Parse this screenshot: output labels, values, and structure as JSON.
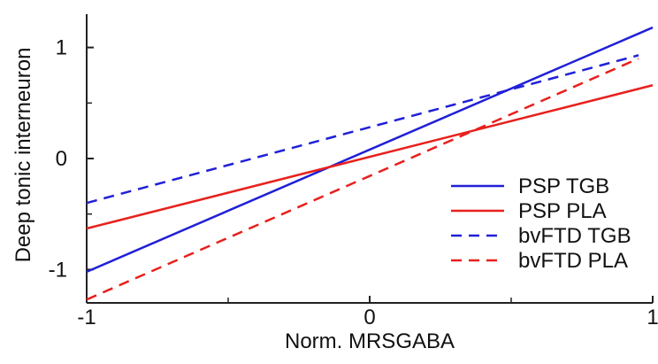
{
  "chart_data": {
    "type": "line",
    "xlabel": "Norm. MRSGABA",
    "ylabel": "Deep tonic interneuron",
    "xlim": [
      -1,
      1
    ],
    "ylim": [
      -1.3,
      1.3
    ],
    "x_ticks": [
      -1,
      0,
      1
    ],
    "x_minor_ticks": [
      -0.5,
      0.5
    ],
    "y_ticks": [
      -1,
      0,
      1
    ],
    "y_minor_ticks": [
      -0.5,
      0.5
    ],
    "grid": false,
    "legend_position": "bottom-right",
    "series": [
      {
        "name": "PSP TGB",
        "color": "#2020d8",
        "dash": false,
        "x": [
          -1,
          1
        ],
        "y": [
          -1.02,
          1.18
        ]
      },
      {
        "name": "PSP PLA",
        "color": "#e8201c",
        "dash": false,
        "x": [
          -1,
          1
        ],
        "y": [
          -0.63,
          0.66
        ]
      },
      {
        "name": "bvFTD TGB",
        "color": "#2020d8",
        "dash": true,
        "x": [
          -1,
          0.95
        ],
        "y": [
          -0.4,
          0.93
        ]
      },
      {
        "name": "bvFTD PLA",
        "color": "#e8201c",
        "dash": true,
        "x": [
          -1,
          0.95
        ],
        "y": [
          -1.27,
          0.9
        ]
      }
    ]
  }
}
